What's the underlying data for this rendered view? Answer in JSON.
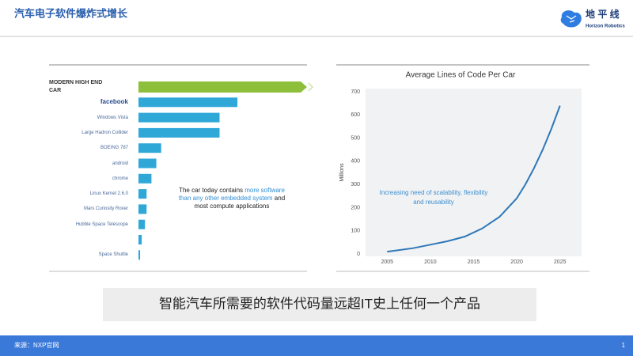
{
  "header": {
    "title": "汽车电子软件爆炸式增长",
    "logo": "地 平 线",
    "logo_sub": "Horizon Robotics"
  },
  "chart_data": [
    {
      "type": "hbar",
      "categories": [
        "MODERN HIGH END CAR",
        "facebook",
        "Windows Vista",
        "Large Hadron Collider",
        "BOEING 787",
        "android",
        "chrome",
        "Linux Kernel 2.6.0",
        "Mars Curiosity Rover",
        "Hubble Space Telescope",
        null,
        "Space Shuttle"
      ],
      "values": [
        100,
        61,
        50,
        50,
        14,
        11,
        8,
        5,
        5,
        4,
        2,
        1
      ],
      "colors": [
        "#8dbf3b",
        "#2fa8d8",
        "#2fa8d8",
        "#2fa8d8",
        "#2fa8d8",
        "#2fa8d8",
        "#2fa8d8",
        "#2fa8d8",
        "#2fa8d8",
        "#2fa8d8",
        "#2fa8d8",
        "#2fa8d8"
      ],
      "annotation": [
        "The car today contains ",
        "more software than any other embedded system",
        " and most compute applications"
      ]
    },
    {
      "type": "line",
      "title": "Average Lines of Code Per Car",
      "y_label": "Millions",
      "annotation": "Increasing need of scalability, flexibility and reusability",
      "color": "#2e78b7",
      "x": [
        2005,
        2008,
        2010,
        2012,
        2014,
        2016,
        2018,
        2020,
        2021,
        2022,
        2023,
        2024,
        2025
      ],
      "values": [
        10,
        25,
        40,
        55,
        75,
        110,
        160,
        240,
        300,
        370,
        450,
        540,
        640
      ],
      "xlim": [
        2002.5,
        2027.5
      ],
      "xticks": [
        2005,
        2010,
        2015,
        2020,
        2025
      ],
      "ylim": [
        0,
        700
      ],
      "yticks": [
        0,
        100,
        200,
        300,
        400,
        500,
        600,
        700
      ],
      "grid": false
    }
  ],
  "caption": "智能汽车所需要的软件代码量远超IT史上任何一个产品",
  "footer": {
    "source": "来源：NXP官网",
    "page": "1"
  }
}
